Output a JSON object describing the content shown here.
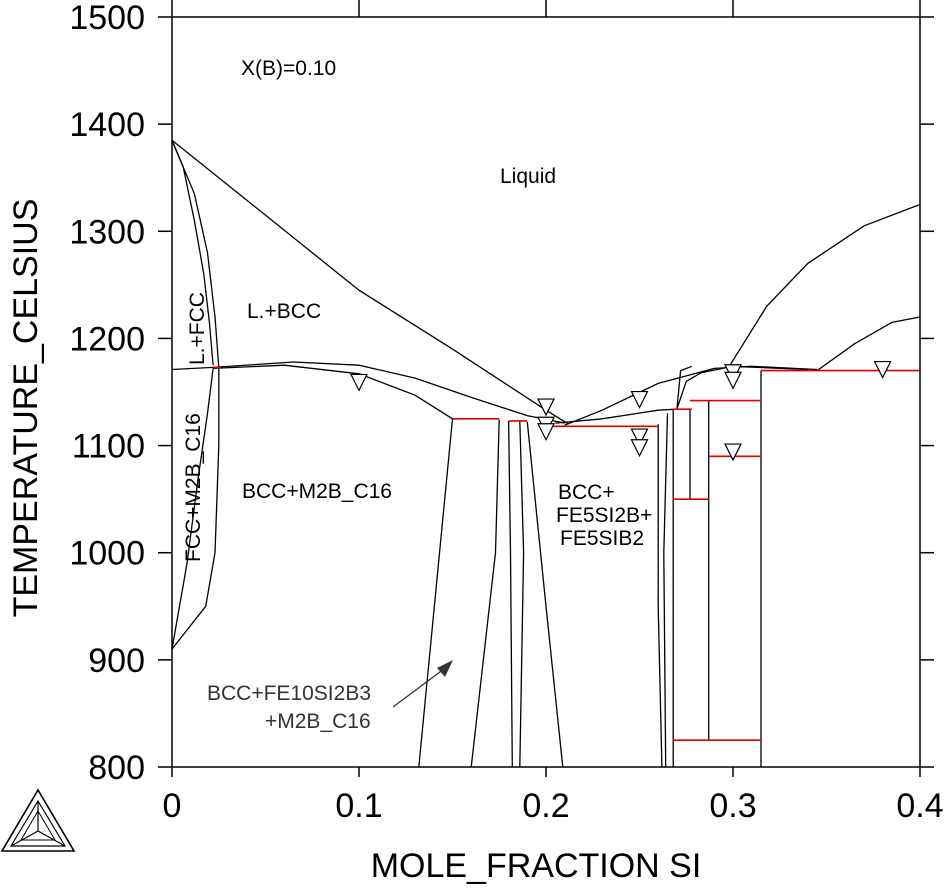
{
  "chart_data": {
    "type": "line",
    "xlabel": "MOLE_FRACTION SI",
    "ylabel": "TEMPERATURE_CELSIUS",
    "xlim": [
      0,
      0.4
    ],
    "ylim": [
      800,
      1500
    ],
    "x_ticks": [
      0,
      0.1,
      0.2,
      0.3,
      0.4
    ],
    "y_ticks": [
      800,
      900,
      1000,
      1100,
      1200,
      1300,
      1400,
      1500
    ],
    "x_tick_labels": [
      "0",
      "0.1",
      "0.2",
      "0.3",
      "0.4"
    ],
    "y_tick_labels": [
      "800",
      "900",
      "1000",
      "1100",
      "1200",
      "1300",
      "1400",
      "1500"
    ],
    "annotation": "X(B)=0.10",
    "grid": false,
    "regions": {
      "liquid": "Liquid",
      "l_bcc": "L.+BCC",
      "l_fcc": "L.+FCC",
      "fcc_m2b": "FCC+M2B_C16",
      "bcc_m2b": "BCC+M2B_C16",
      "bcc_fe5": [
        "BCC+",
        "FE5SI2B+",
        "FE5SIB2"
      ],
      "bcc_fe10": [
        "BCC+FE10SI2B3",
        "+M2B_C16"
      ]
    },
    "boundaries": [
      {
        "points": [
          [
            0,
            1385
          ],
          [
            0.1,
            1245
          ],
          [
            0.15,
            1190
          ],
          [
            0.2,
            1133
          ],
          [
            0.212,
            1120
          ]
        ]
      },
      {
        "points": [
          [
            0,
            1385
          ],
          [
            0.006,
            1360
          ],
          [
            0.012,
            1310
          ],
          [
            0.017,
            1260
          ],
          [
            0.02,
            1215
          ],
          [
            0.022,
            1175
          ]
        ]
      },
      {
        "points": [
          [
            0,
            1385
          ],
          [
            0.012,
            1335
          ],
          [
            0.019,
            1280
          ],
          [
            0.023,
            1220
          ],
          [
            0.025,
            1173
          ],
          [
            0.025,
            1100
          ],
          [
            0.023,
            1000
          ],
          [
            0.018,
            950
          ],
          [
            0,
            910
          ]
        ]
      },
      {
        "points": [
          [
            0,
            910
          ],
          [
            0.008,
            990
          ],
          [
            0.014,
            1070
          ],
          [
            0.019,
            1130
          ],
          [
            0.022,
            1172
          ]
        ]
      },
      {
        "points": [
          [
            0,
            1171
          ],
          [
            0.022,
            1173
          ],
          [
            0.065,
            1178
          ],
          [
            0.1,
            1175
          ],
          [
            0.13,
            1163
          ],
          [
            0.16,
            1145
          ],
          [
            0.19,
            1128
          ],
          [
            0.21,
            1121
          ]
        ]
      },
      {
        "points": [
          [
            0.022,
            1172
          ],
          [
            0.06,
            1175
          ],
          [
            0.1,
            1167
          ],
          [
            0.13,
            1147
          ],
          [
            0.15,
            1125
          ]
        ]
      },
      {
        "points": [
          [
            0.21,
            1119
          ],
          [
            0.23,
            1133
          ],
          [
            0.26,
            1158
          ],
          [
            0.29,
            1172
          ],
          [
            0.31,
            1174
          ],
          [
            0.345,
            1171
          ]
        ]
      },
      {
        "points": [
          [
            0.205,
            1121
          ],
          [
            0.23,
            1125
          ],
          [
            0.26,
            1133
          ],
          [
            0.27,
            1134
          ]
        ]
      },
      {
        "points": [
          [
            0.27,
            1134
          ],
          [
            0.275,
            1160
          ],
          [
            0.283,
            1168
          ],
          [
            0.3,
            1174
          ],
          [
            0.34,
            1171
          ]
        ]
      },
      {
        "points": [
          [
            0.298,
            1174
          ],
          [
            0.318,
            1230
          ],
          [
            0.34,
            1270
          ],
          [
            0.37,
            1305
          ],
          [
            0.4,
            1325
          ]
        ]
      },
      {
        "points": [
          [
            0.345,
            1170
          ],
          [
            0.365,
            1195
          ],
          [
            0.385,
            1215
          ],
          [
            0.4,
            1220
          ]
        ]
      },
      {
        "points": [
          [
            0.15,
            1125
          ],
          [
            0.132,
            800
          ]
        ]
      },
      {
        "points": [
          [
            0.175,
            1124
          ],
          [
            0.173,
            1000
          ],
          [
            0.16,
            800
          ]
        ]
      },
      {
        "points": [
          [
            0.18,
            1123
          ],
          [
            0.181,
            1000
          ],
          [
            0.182,
            800
          ]
        ]
      },
      {
        "points": [
          [
            0.186,
            1123
          ],
          [
            0.188,
            1000
          ],
          [
            0.186,
            800
          ]
        ]
      },
      {
        "points": [
          [
            0.19,
            1122
          ],
          [
            0.2,
            950
          ],
          [
            0.209,
            800
          ]
        ]
      },
      {
        "points": [
          [
            0.26,
            1120
          ],
          [
            0.26,
            950
          ],
          [
            0.262,
            800
          ]
        ]
      },
      {
        "points": [
          [
            0.265,
            1130
          ],
          [
            0.263,
            1000
          ],
          [
            0.264,
            800
          ]
        ]
      },
      {
        "points": [
          [
            0.268,
            1134
          ],
          [
            0.268,
            800
          ]
        ]
      },
      {
        "points": [
          [
            0.277,
            1134
          ],
          [
            0.277,
            1050
          ]
        ]
      },
      {
        "points": [
          [
            0.287,
            1142
          ],
          [
            0.287,
            825
          ]
        ]
      },
      {
        "points": [
          [
            0.315,
            1170
          ],
          [
            0.315,
            800
          ]
        ]
      },
      {
        "points": [
          [
            0.27,
            1134
          ],
          [
            0.272,
            1170
          ],
          [
            0.278,
            1174
          ]
        ]
      }
    ],
    "isotherms": [
      {
        "x1": 0.022,
        "x2": 0.026,
        "y": 1173
      },
      {
        "x1": 0.15,
        "x2": 0.175,
        "y": 1125
      },
      {
        "x1": 0.18,
        "x2": 0.19,
        "y": 1123
      },
      {
        "x1": 0.2,
        "x2": 0.26,
        "y": 1118
      },
      {
        "x1": 0.268,
        "x2": 0.278,
        "y": 1134
      },
      {
        "x1": 0.277,
        "x2": 0.315,
        "y": 1142
      },
      {
        "x1": 0.287,
        "x2": 0.315,
        "y": 1090
      },
      {
        "x1": 0.268,
        "x2": 0.287,
        "y": 1050
      },
      {
        "x1": 0.268,
        "x2": 0.315,
        "y": 825
      },
      {
        "x1": 0.315,
        "x2": 0.4,
        "y": 1170
      }
    ],
    "markers": [
      {
        "x": 0.1,
        "y": 1158
      },
      {
        "x": 0.2,
        "y": 1135
      },
      {
        "x": 0.2,
        "y": 1118
      },
      {
        "x": 0.2,
        "y": 1112
      },
      {
        "x": 0.25,
        "y": 1142
      },
      {
        "x": 0.25,
        "y": 1107
      },
      {
        "x": 0.25,
        "y": 1097
      },
      {
        "x": 0.3,
        "y": 1167
      },
      {
        "x": 0.3,
        "y": 1160
      },
      {
        "x": 0.3,
        "y": 1093
      },
      {
        "x": 0.38,
        "y": 1170
      }
    ]
  }
}
